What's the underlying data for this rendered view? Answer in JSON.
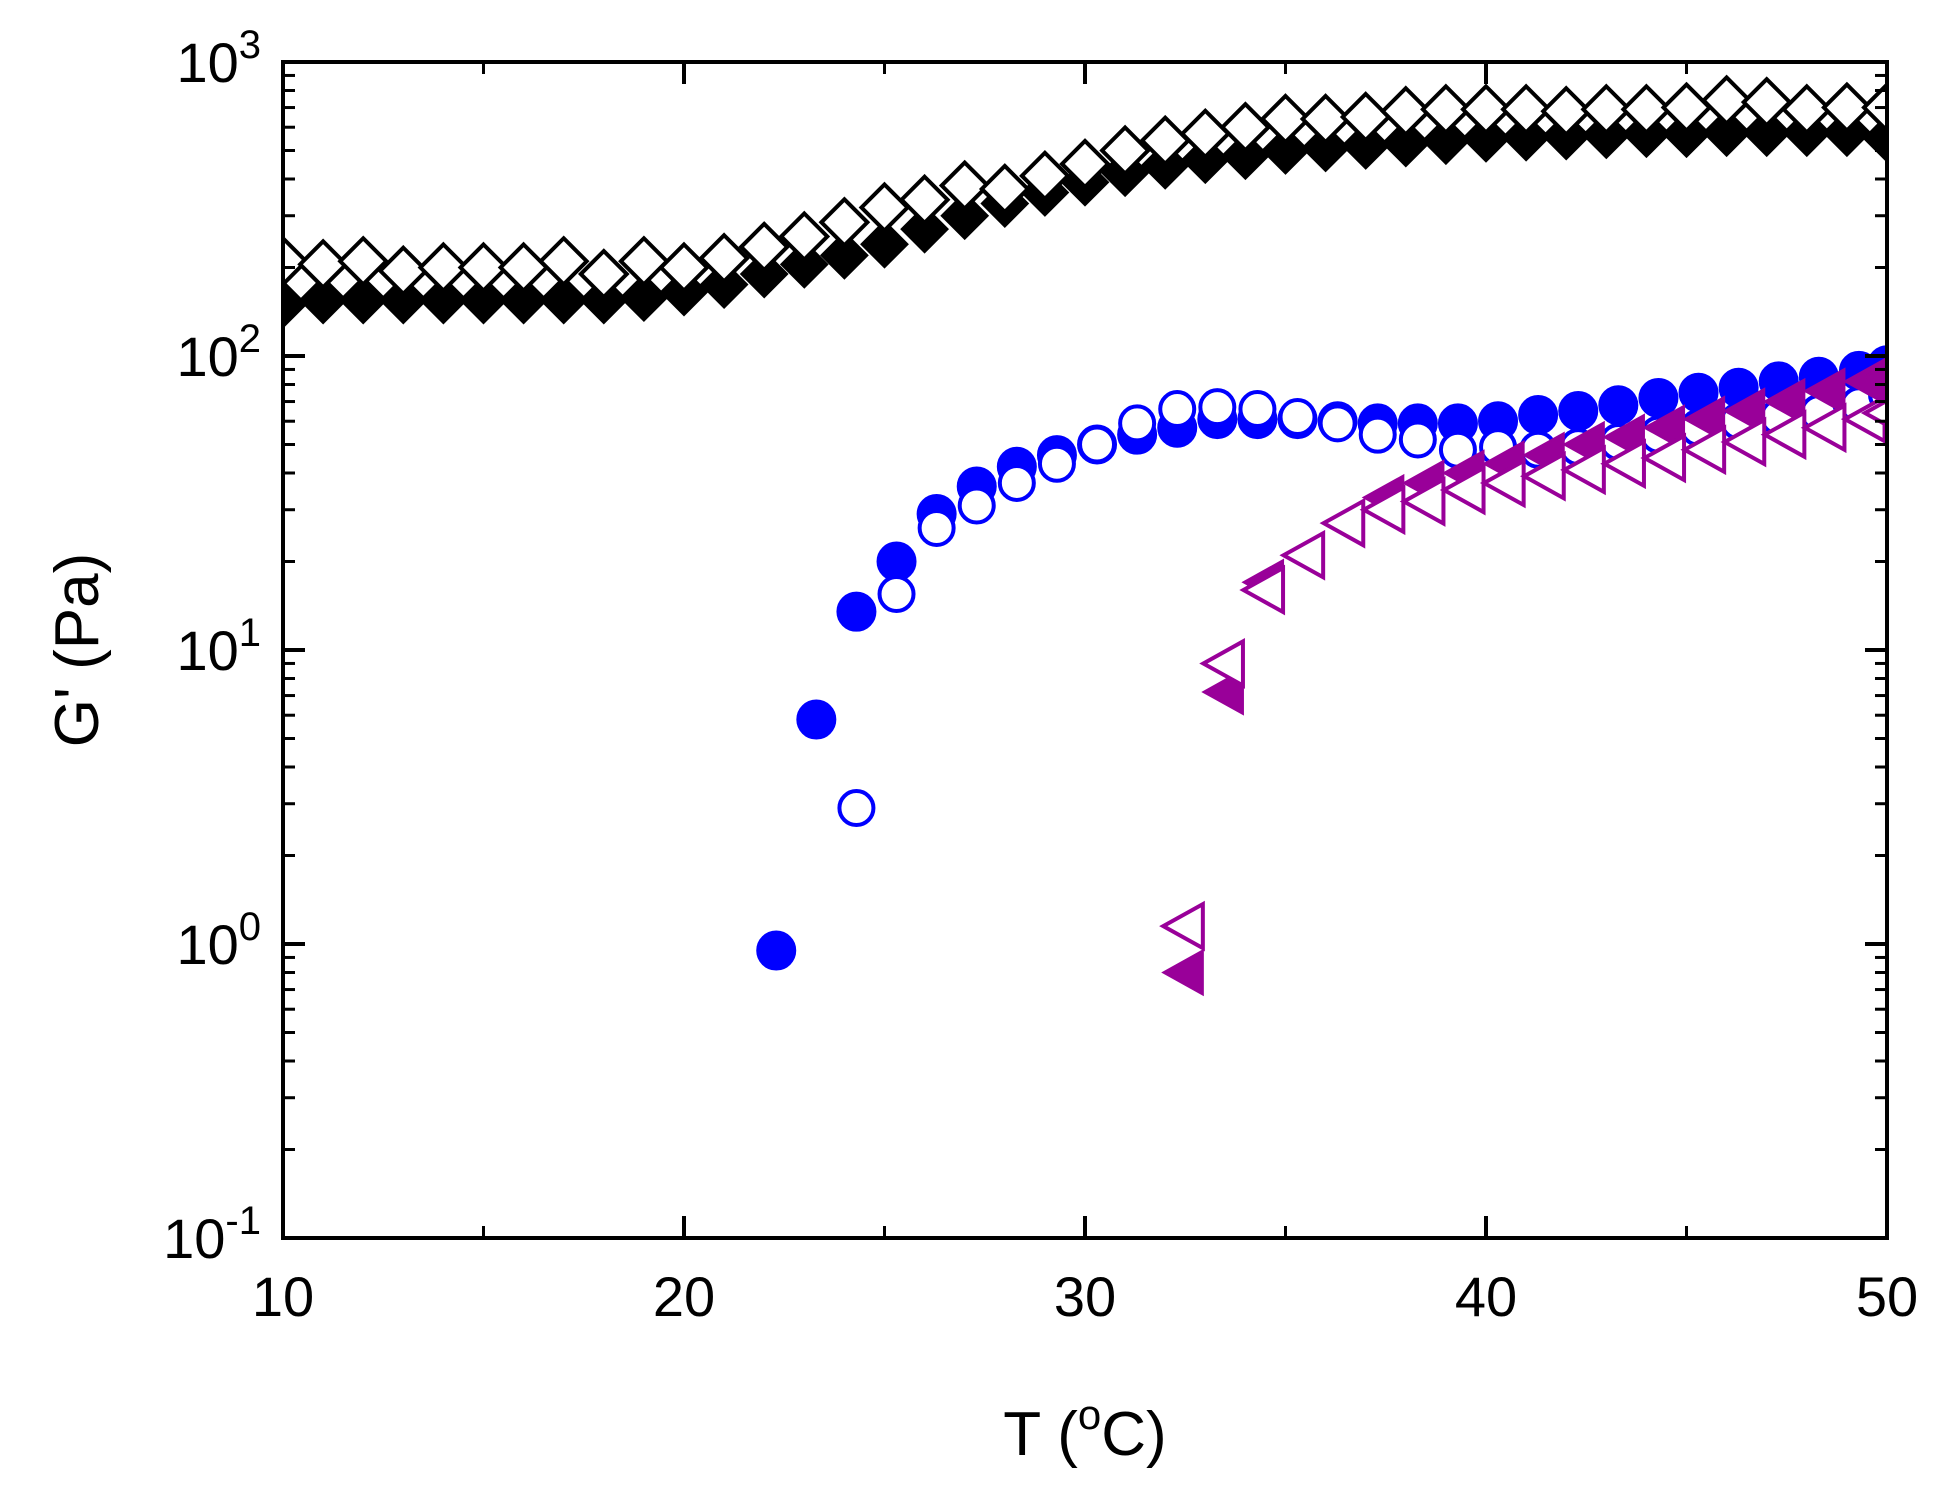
{
  "chart_data": {
    "type": "scatter",
    "title": "",
    "xlabel": "T (oC)",
    "ylabel": "G' (Pa)",
    "xlim": [
      10,
      50
    ],
    "ylim": [
      0.1,
      1000
    ],
    "yscale": "log",
    "x_ticks": [
      "10",
      "20",
      "30",
      "40",
      "50"
    ],
    "x_tick_values": [
      10,
      20,
      30,
      40,
      50
    ],
    "y_ticks": [
      {
        "value": 0.1,
        "base": "10",
        "exp": "-1"
      },
      {
        "value": 1,
        "base": "10",
        "exp": "0"
      },
      {
        "value": 10,
        "base": "10",
        "exp": "1"
      },
      {
        "value": 100,
        "base": "10",
        "exp": "2"
      },
      {
        "value": 1000,
        "base": "10",
        "exp": "3"
      }
    ],
    "series": [
      {
        "name": "black filled diamonds",
        "marker": "diamond",
        "filled": true,
        "color": "#000000",
        "x": [
          10,
          11,
          12,
          13,
          14,
          15,
          16,
          17,
          18,
          19,
          20,
          21,
          22,
          23,
          24,
          25,
          26,
          27,
          28,
          29,
          30,
          31,
          32,
          33,
          34,
          35,
          36,
          37,
          38,
          39,
          40,
          41,
          42,
          43,
          44,
          45,
          46,
          47,
          48,
          49,
          50
        ],
        "y": [
          150,
          155,
          155,
          155,
          155,
          155,
          155,
          155,
          155,
          158,
          165,
          175,
          190,
          205,
          220,
          240,
          270,
          300,
          330,
          360,
          390,
          420,
          445,
          465,
          480,
          500,
          510,
          520,
          530,
          540,
          550,
          555,
          560,
          565,
          570,
          570,
          575,
          575,
          575,
          575,
          550
        ]
      },
      {
        "name": "black open diamonds",
        "marker": "diamond",
        "filled": false,
        "color": "#000000",
        "x": [
          10,
          11,
          12,
          13,
          14,
          15,
          16,
          17,
          18,
          19,
          20,
          21,
          22,
          23,
          24,
          25,
          26,
          27,
          28,
          29,
          30,
          31,
          32,
          33,
          34,
          35,
          36,
          37,
          38,
          39,
          40,
          41,
          42,
          43,
          44,
          45,
          46,
          47,
          48,
          49,
          50
        ],
        "y": [
          210,
          205,
          210,
          195,
          200,
          200,
          200,
          210,
          190,
          210,
          200,
          215,
          235,
          255,
          285,
          320,
          340,
          380,
          370,
          410,
          450,
          500,
          540,
          570,
          600,
          640,
          640,
          650,
          680,
          690,
          690,
          690,
          680,
          690,
          690,
          700,
          740,
          730,
          690,
          700,
          700
        ]
      },
      {
        "name": "blue filled circles",
        "marker": "circle",
        "filled": true,
        "color": "#0000ff",
        "x": [
          22.3,
          23.3,
          24.3,
          25.3,
          26.3,
          27.3,
          28.3,
          29.3,
          30.3,
          31.3,
          32.3,
          33.3,
          34.3,
          35.3,
          36.3,
          37.3,
          38.3,
          39.3,
          40.3,
          41.3,
          42.3,
          43.3,
          44.3,
          45.3,
          46.3,
          47.3,
          48.3,
          49.3,
          50
        ],
        "y": [
          0.95,
          5.8,
          13.5,
          20,
          29,
          36,
          42,
          46,
          50,
          54,
          57,
          61,
          61,
          61,
          60,
          59,
          59,
          59,
          60,
          63,
          65,
          68,
          72,
          75,
          78,
          82,
          85,
          89,
          93
        ]
      },
      {
        "name": "blue open circles",
        "marker": "circle",
        "filled": false,
        "color": "#0000ff",
        "x": [
          24.3,
          25.3,
          26.3,
          27.3,
          28.3,
          29.3,
          30.3,
          31.3,
          32.3,
          33.3,
          34.3,
          35.3,
          36.3,
          37.3,
          38.3,
          39.3,
          40.3,
          41.3,
          42.3,
          43.3,
          44.3,
          45.3,
          46.3,
          47.3,
          48.3,
          49.3,
          50
        ],
        "y": [
          2.9,
          15.5,
          26,
          31,
          37,
          43,
          50,
          59,
          66,
          67,
          66,
          62,
          59,
          54,
          52,
          48,
          49,
          48,
          49,
          51,
          54,
          57,
          60,
          62,
          64,
          68,
          74
        ]
      },
      {
        "name": "purple filled left triangles",
        "marker": "triangle-left",
        "filled": true,
        "color": "#990099",
        "x": [
          32.5,
          33.5,
          34.5,
          35.5,
          36.5,
          37.5,
          38.5,
          39.5,
          40.5,
          41.5,
          42.5,
          43.5,
          44.5,
          45.5,
          46.5,
          47.5,
          48.5,
          49.5,
          50
        ],
        "y": [
          0.8,
          7.2,
          17,
          21,
          27,
          33,
          37,
          40,
          43,
          46,
          50,
          53,
          57,
          61,
          65,
          70,
          76,
          82,
          85
        ]
      },
      {
        "name": "purple open left triangles",
        "marker": "triangle-left",
        "filled": false,
        "color": "#990099",
        "x": [
          32.5,
          33.5,
          34.5,
          35.5,
          36.5,
          37.5,
          38.5,
          39.5,
          40.5,
          41.5,
          42.5,
          43.5,
          44.5,
          45.5,
          46.5,
          47.5,
          48.5,
          49.5,
          50
        ],
        "y": [
          1.15,
          9,
          16,
          21,
          27,
          30,
          32,
          35,
          37,
          39,
          41,
          43,
          45,
          48,
          51,
          54,
          57,
          61,
          64
        ]
      }
    ]
  }
}
